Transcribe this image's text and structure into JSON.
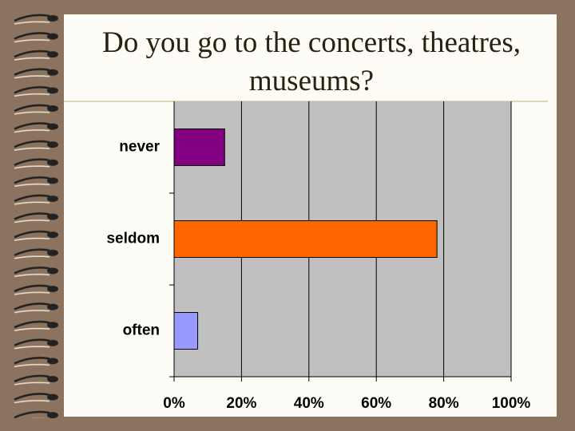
{
  "chart_data": {
    "type": "bar",
    "orientation": "horizontal",
    "title": "Do you go to the concerts, theatres, museums?",
    "categories": [
      "never",
      "seldom",
      "often"
    ],
    "values": [
      15,
      78,
      7
    ],
    "colors": [
      "#800080",
      "#ff6600",
      "#9999ff"
    ],
    "xlim": [
      0,
      100
    ],
    "xticks": [
      {
        "value": 0,
        "label": "0%"
      },
      {
        "value": 20,
        "label": "20%"
      },
      {
        "value": 40,
        "label": "40%"
      },
      {
        "value": 60,
        "label": "60%"
      },
      {
        "value": 80,
        "label": "80%"
      },
      {
        "value": 100,
        "label": "100%"
      }
    ],
    "grid": true
  }
}
